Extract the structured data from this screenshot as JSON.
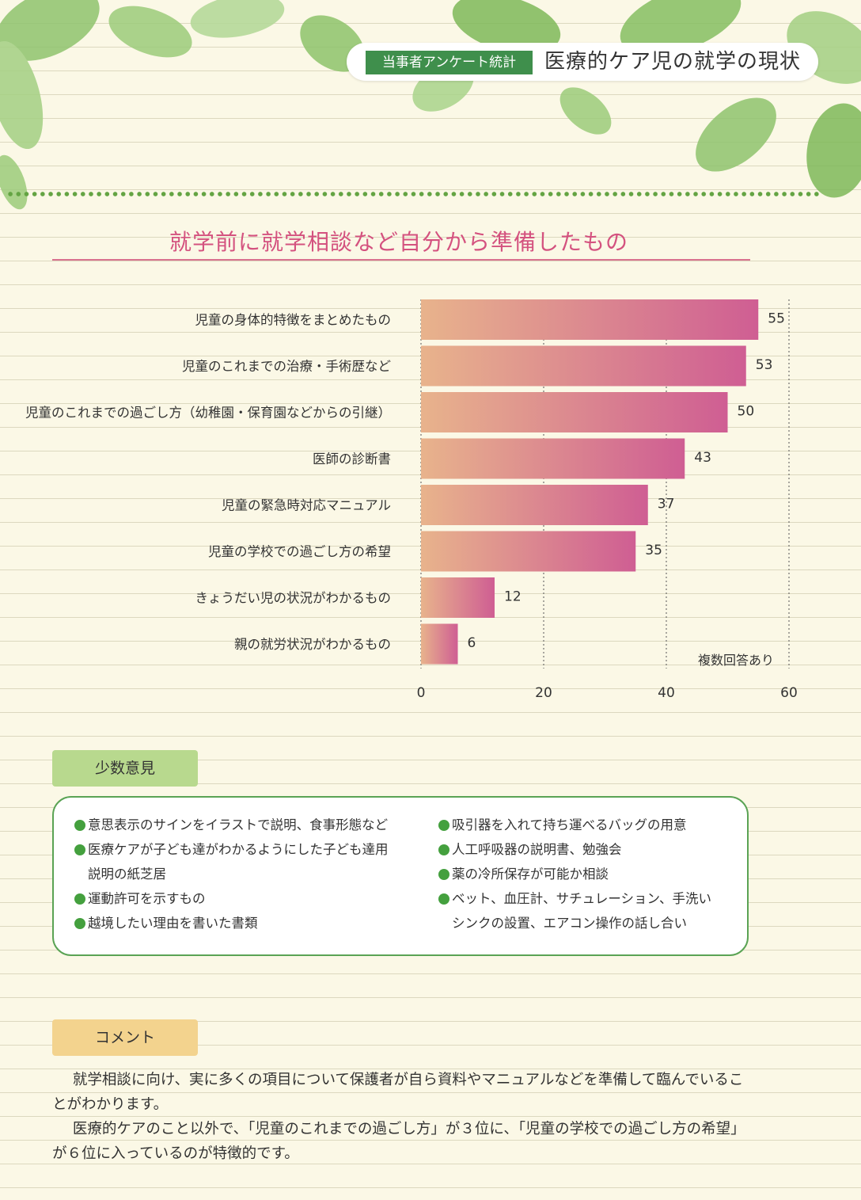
{
  "header": {
    "tag": "当事者アンケート統計",
    "title": "医療的ケア児の就学の現状"
  },
  "colors": {
    "accent_pink": "#d4527f",
    "bar_start": "#e8b38c",
    "bar_end": "#cf5e93",
    "green": "#3f8f4c"
  },
  "chart_data": {
    "type": "bar",
    "orientation": "horizontal",
    "title": "就学前に就学相談など自分から準備したもの",
    "categories": [
      "児童の身体的特徴をまとめたもの",
      "児童のこれまでの治療・手術歴など",
      "児童のこれまでの過ごし方（幼稚園・保育園などからの引継）",
      "医師の診断書",
      "児童の緊急時対応マニュアル",
      "児童の学校での過ごし方の希望",
      "きょうだい児の状況がわかるもの",
      "親の就労状況がわかるもの"
    ],
    "values": [
      55,
      53,
      50,
      43,
      37,
      35,
      12,
      6
    ],
    "xlim": [
      0,
      60
    ],
    "ticks": [
      "0",
      "20",
      "40",
      "60"
    ],
    "grid": true,
    "note": "複数回答あり"
  },
  "opinions": {
    "label": "少数意見",
    "left": [
      "意思表示のサインをイラストで説明、食事形態など",
      "医療ケアが子ども達がわかるようにした子ども達用",
      "説明の紙芝居",
      "運動許可を示すもの",
      "越境したい理由を書いた書類"
    ],
    "right": [
      "吸引器を入れて持ち運べるバッグの用意",
      "人工呼吸器の説明書、勉強会",
      "薬の冷所保存が可能か相談",
      "ベット、血圧計、サチュレーション、手洗い",
      "シンクの設置、エアコン操作の話し合い"
    ]
  },
  "comment": {
    "label": "コメント",
    "paragraphs": [
      "就学相談に向け、実に多くの項目について保護者が自ら資料やマニュアルなどを準備して臨んでいることがわかります。",
      "医療的ケアのこと以外で、「児童のこれまでの過ごし方」が３位に、「児童の学校での過ごし方の希望」が６位に入っているのが特徴的です。"
    ]
  }
}
